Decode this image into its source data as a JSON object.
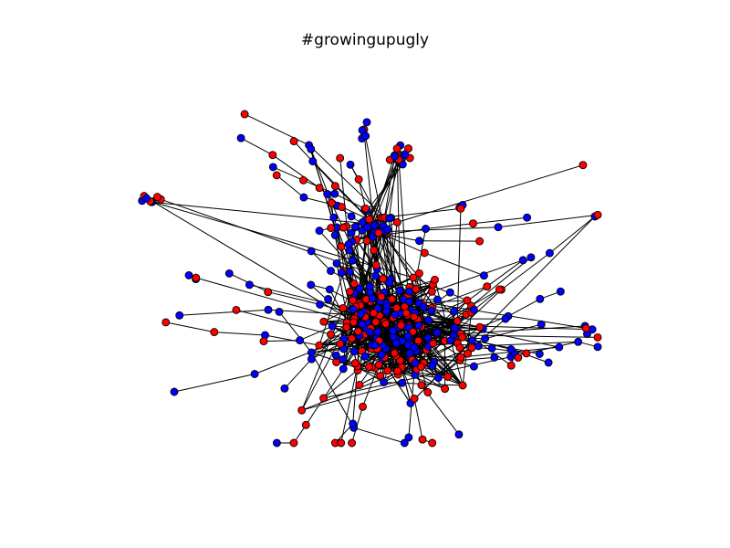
{
  "title": "#growingupugly",
  "legend": "none",
  "axes": "hidden",
  "colors": {
    "background": "#ffffff",
    "node_red": "#ff0000",
    "node_blue": "#0000ff",
    "node_outline": "#000000",
    "edge": "#000000"
  }
}
